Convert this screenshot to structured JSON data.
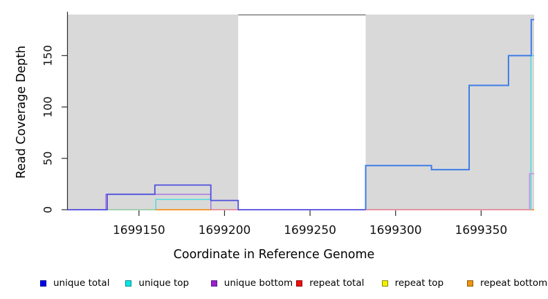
{
  "chart_data": {
    "type": "line",
    "title": "",
    "xlabel": "Coordinate in Reference Genome",
    "ylabel": "Read Coverage Depth",
    "xlim": [
      1699108,
      1699381
    ],
    "ylim": [
      0,
      190
    ],
    "xticks": [
      1699150,
      1699200,
      1699250,
      1699300,
      1699350
    ],
    "yticks": [
      0,
      50,
      100,
      150
    ],
    "grid": false,
    "legend_position": "bottom",
    "plot_background": "#ffffff",
    "highlight_regions": [
      {
        "name": "shaded-region-left",
        "x0": 1699108,
        "x1": 1699208,
        "color": "#d9d9d9"
      },
      {
        "name": "shaded-region-right",
        "x0": 1699282.5,
        "x1": 1699381,
        "color": "#d9d9d9"
      }
    ],
    "series": [
      {
        "name": "repeat total baseline",
        "legend": "repeat total",
        "color": "#e0607a",
        "width": 1.3,
        "points": [
          [
            1699108,
            0
          ],
          [
            1699381,
            0
          ]
        ]
      },
      {
        "name": "unique-top repeat-top zero blend",
        "legend": "unique top",
        "color": "#8fd4a4",
        "width": 1.4,
        "points": [
          [
            1699131,
            0
          ],
          [
            1699159.6,
            0
          ]
        ]
      },
      {
        "name": "repeat bottom left segment",
        "legend": "repeat bottom",
        "color": "#f5941e",
        "width": 1.7,
        "points": [
          [
            1699159.6,
            0
          ],
          [
            1699192,
            0
          ]
        ]
      },
      {
        "name": "repeat bottom right segment",
        "legend": "repeat bottom",
        "color": "#f5941e",
        "width": 1.7,
        "points": [
          [
            1699379.4,
            0
          ],
          [
            1699381,
            0
          ]
        ]
      },
      {
        "name": "unique top left block",
        "legend": "unique top",
        "color": "#42dcdc",
        "width": 1.4,
        "points": [
          [
            1699159.9,
            0
          ],
          [
            1699159.9,
            10
          ],
          [
            1699192,
            10
          ],
          [
            1699192,
            0
          ]
        ]
      },
      {
        "name": "unique top right step",
        "legend": "unique top",
        "color": "#42dcdc",
        "width": 1.4,
        "points": [
          [
            1699379.1,
            0
          ],
          [
            1699379.1,
            150
          ],
          [
            1699381,
            150
          ]
        ]
      },
      {
        "name": "unique bottom left block",
        "legend": "unique bottom",
        "color": "#a76ee0",
        "width": 1.4,
        "points": [
          [
            1699130.6,
            0
          ],
          [
            1699130.6,
            15
          ],
          [
            1699192,
            15
          ],
          [
            1699192,
            0
          ]
        ]
      },
      {
        "name": "unique bottom right step",
        "legend": "unique bottom",
        "color": "#c791ea",
        "width": 1.6,
        "points": [
          [
            1699378.3,
            0
          ],
          [
            1699378.3,
            35
          ],
          [
            1699381,
            35
          ]
        ]
      },
      {
        "name": "unique total left",
        "legend": "unique total",
        "color": "#4d4de0",
        "width": 1.8,
        "points": [
          [
            1699108,
            0
          ],
          [
            1699131.4,
            0
          ],
          [
            1699131.4,
            15
          ],
          [
            1699159.3,
            15
          ],
          [
            1699159.3,
            24
          ],
          [
            1699192,
            24
          ],
          [
            1699192,
            9
          ],
          [
            1699208,
            9
          ],
          [
            1699208,
            0
          ],
          [
            1699282.5,
            0
          ]
        ]
      },
      {
        "name": "unique total right",
        "legend": "unique total",
        "color": "#3d7ce8",
        "width": 2,
        "points": [
          [
            1699282.5,
            0
          ],
          [
            1699282.5,
            43
          ],
          [
            1699321,
            43
          ],
          [
            1699321,
            39
          ],
          [
            1699343,
            39
          ],
          [
            1699343,
            121
          ],
          [
            1699366,
            121
          ],
          [
            1699366,
            150
          ],
          [
            1699379.3,
            150
          ],
          [
            1699379.3,
            185
          ],
          [
            1699381,
            185
          ]
        ]
      }
    ]
  },
  "legend": {
    "items": [
      {
        "label": "unique total",
        "fill": "#0000ee",
        "border": "#00008b"
      },
      {
        "label": "unique top",
        "fill": "#00e5e5",
        "border": "#008b8b"
      },
      {
        "label": "unique bottom",
        "fill": "#9a20cc",
        "border": "#551a8b"
      },
      {
        "label": "repeat total",
        "fill": "#ee1010",
        "border": "#8b0000"
      },
      {
        "label": "repeat top",
        "fill": "#f0f000",
        "border": "#8b8b00"
      },
      {
        "label": "repeat bottom",
        "fill": "#f09510",
        "border": "#8b5a00"
      }
    ]
  }
}
